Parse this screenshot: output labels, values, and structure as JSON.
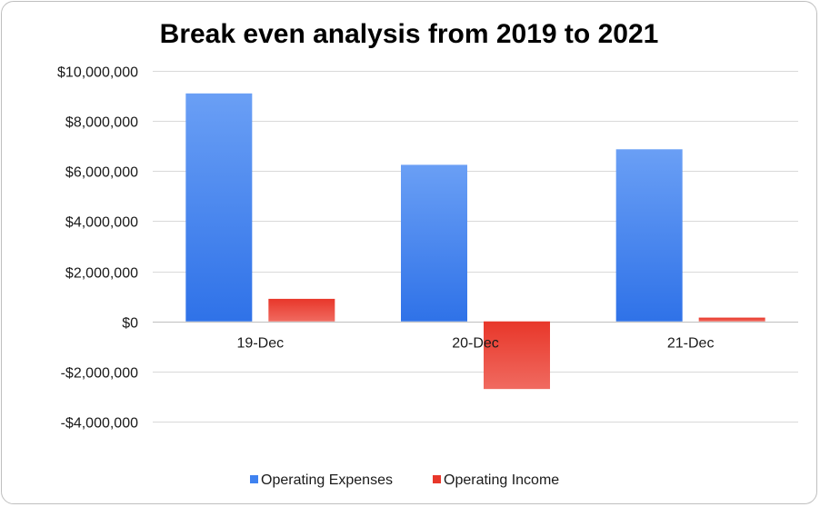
{
  "chart_data": {
    "type": "bar",
    "title": "Break even analysis from 2019 to 2021",
    "xlabel": "",
    "ylabel": "",
    "categories": [
      "19-Dec",
      "20-Dec",
      "21-Dec"
    ],
    "series": [
      {
        "name": "Operating Expenses",
        "values": [
          9100000,
          6250000,
          6870000
        ],
        "color": "#3f82f0"
      },
      {
        "name": "Operating Income",
        "values": [
          900000,
          -2700000,
          150000
        ],
        "color": "#e8372a"
      }
    ],
    "ylim": [
      -4000000,
      10000000
    ],
    "yticks": [
      10000000,
      8000000,
      6000000,
      4000000,
      2000000,
      0,
      -2000000,
      -4000000
    ],
    "ytick_labels": [
      "$10,000,000",
      "$8,000,000",
      "$6,000,000",
      "$4,000,000",
      "$2,000,000",
      "$0",
      "-$2,000,000",
      "-$4,000,000"
    ],
    "grid": true,
    "legend_position": "bottom"
  }
}
